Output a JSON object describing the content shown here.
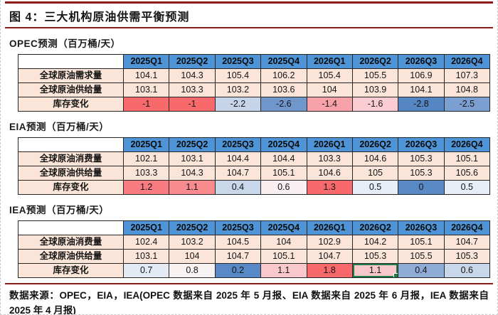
{
  "title": "图 4：三大机构原油供需平衡预测",
  "quarters": [
    "2025Q1",
    "2025Q2",
    "2025Q3",
    "2025Q4",
    "2026Q1",
    "2026Q2",
    "2026Q3",
    "2026Q4"
  ],
  "sections": [
    {
      "id": "opec",
      "header": "OPEC预测（百万桶/天）",
      "rows": [
        {
          "label": "全球原油需求量",
          "values": [
            "104.1",
            "104.3",
            "105.4",
            "106.2",
            "105.4",
            "105.5",
            "106.9",
            "107.3"
          ]
        },
        {
          "label": "全球原油供给量",
          "values": [
            "103.1",
            "103.3",
            "103.2",
            "103.6",
            "104",
            "103.9",
            "104.1",
            "104.8"
          ]
        },
        {
          "label": "库存变化",
          "values": [
            "-1",
            "-1",
            "-2.2",
            "-2.6",
            "-1.4",
            "-1.6",
            "-2.8",
            "-2.5"
          ],
          "cell_colors": [
            "#F8696B",
            "#F8696B",
            "#C6D4EA",
            "#7097CC",
            "#F7A2A9",
            "#FBCDD2",
            "#5585C3",
            "#7B9FD0"
          ]
        }
      ]
    },
    {
      "id": "eia",
      "header": "EIA预测（百万桶/天）",
      "rows": [
        {
          "label": "全球原油消费量",
          "values": [
            "102.1",
            "103.1",
            "104.4",
            "104.4",
            "103.3",
            "104.6",
            "105.3",
            "105.1"
          ]
        },
        {
          "label": "全球原油供给量",
          "values": [
            "103.3",
            "104.3",
            "104.7",
            "105.1",
            "104.6",
            "105",
            "105.3",
            "105.6"
          ]
        },
        {
          "label": "库存变化",
          "values": [
            "1.2",
            "1.1",
            "0.4",
            "0.6",
            "1.3",
            "0.5",
            "0",
            "0.5"
          ],
          "cell_colors": [
            "#F87C7F",
            "#F98A8E",
            "#C9D7EB",
            "#F9EFF1",
            "#F8696B",
            "#E7EDF6",
            "#5A8AC6",
            "#E7EDF6"
          ]
        }
      ]
    },
    {
      "id": "iea",
      "header": "IEA预测（百万桶/天）",
      "rows": [
        {
          "label": "全球原油消费量",
          "values": [
            "102.4",
            "103.2",
            "104.5",
            "104",
            "102.9",
            "104.2",
            "105.1",
            "104.7"
          ]
        },
        {
          "label": "全球原油供给量",
          "values": [
            "103.1",
            "104",
            "104.7",
            "105.1",
            "104.7",
            "105.3",
            "105.5",
            "105.3"
          ]
        },
        {
          "label": "库存变化",
          "values": [
            "0.7",
            "0.8",
            "0.2",
            "1.1",
            "1.8",
            "1.1",
            "0.4",
            "0.6"
          ],
          "cell_colors": [
            "#E3EAF4",
            "#F9F2F3",
            "#5888C5",
            "#F9C8CD",
            "#F8696B",
            "#F9C8CD",
            "#8FACD7",
            "#C9D7EB"
          ],
          "selected_col": 5
        }
      ]
    }
  ],
  "source_note": "数据来源：OPEC，EIA，IEA(OPEC 数据来自 2025 年 5 月报、EIA 数据来自 2025 年 6 月报，IEA 数据来自 2025 年 4 月报)",
  "colors": {
    "header_bg": "#4E94D6",
    "row_bg": "#FBE5D8",
    "accent_line": "#8B1A1A",
    "selection_green": "#1E7D45",
    "grid": "#262626"
  }
}
